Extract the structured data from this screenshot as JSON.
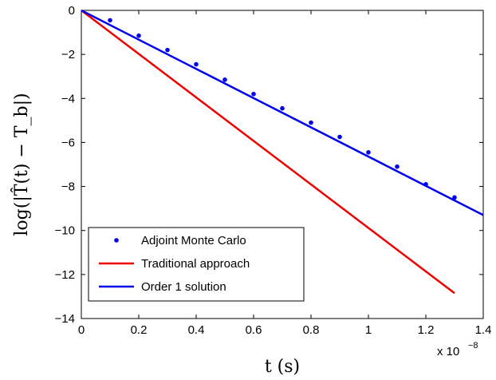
{
  "chart_data": {
    "type": "line",
    "title": "",
    "xlabel": "t (s)",
    "ylabel": "log(|T̂(t) − T_b|)",
    "x_exponent_label": "x 10",
    "x_exponent_power": "−8",
    "xlim": [
      0,
      1.4
    ],
    "ylim": [
      -14,
      0
    ],
    "xticks": [
      0,
      0.2,
      0.4,
      0.6,
      0.8,
      1,
      1.2,
      1.4
    ],
    "yticks": [
      0,
      -2,
      -4,
      -6,
      -8,
      -10,
      -12,
      -14
    ],
    "grid": false,
    "legend_position": "bottom-left",
    "series": [
      {
        "name": "Adjoint Monte Carlo",
        "style": "markers",
        "color": "#0000ee",
        "x": [
          0.1,
          0.2,
          0.3,
          0.4,
          0.5,
          0.6,
          0.7,
          0.8,
          0.9,
          1.0,
          1.1,
          1.2,
          1.3
        ],
        "y": [
          -0.45,
          -1.15,
          -1.8,
          -2.45,
          -3.15,
          -3.8,
          -4.45,
          -5.1,
          -5.75,
          -6.45,
          -7.1,
          -7.9,
          -8.5
        ]
      },
      {
        "name": "Traditional approach",
        "style": "line",
        "color": "#ee0000",
        "x": [
          0,
          1.3
        ],
        "y": [
          0,
          -12.85
        ]
      },
      {
        "name": "Order 1 solution",
        "style": "line",
        "color": "#0000ee",
        "x": [
          0,
          1.4
        ],
        "y": [
          0,
          -9.3
        ]
      }
    ]
  }
}
